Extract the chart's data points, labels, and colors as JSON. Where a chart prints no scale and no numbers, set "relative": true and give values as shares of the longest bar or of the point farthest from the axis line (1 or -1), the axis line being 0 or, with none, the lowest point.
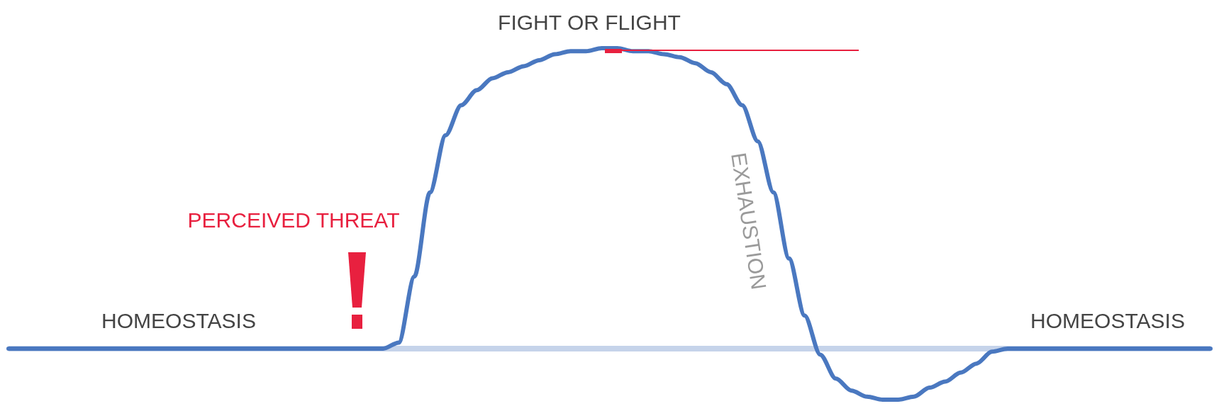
{
  "chart_data": {
    "type": "line",
    "relative": true,
    "categories": [
      null,
      null,
      null,
      null,
      null,
      null,
      null,
      null,
      null,
      null,
      null,
      null,
      null,
      null,
      null,
      null,
      null,
      null,
      null,
      null,
      null,
      null,
      null,
      null,
      null,
      null,
      null,
      null,
      null,
      null,
      null,
      null,
      null,
      null,
      null,
      null,
      null,
      null,
      null,
      null,
      null,
      null,
      null,
      null,
      null,
      null,
      null,
      null,
      null,
      null,
      null,
      null,
      null,
      null,
      null,
      null,
      null,
      null,
      null,
      null,
      null,
      null,
      null,
      null,
      null,
      null,
      null,
      null,
      null,
      null,
      null,
      null,
      null,
      null,
      null,
      null,
      null,
      null
    ],
    "series": [
      {
        "color": "#4a78c0",
        "values": [
          0,
          0,
          0,
          0,
          0,
          0,
          0,
          0,
          0,
          0,
          0,
          0,
          0,
          0,
          0,
          0,
          0,
          0,
          0,
          0,
          0,
          0,
          0,
          0,
          0,
          0.02,
          0.24,
          0.52,
          0.71,
          0.81,
          0.86,
          0.9,
          0.92,
          0.94,
          0.96,
          0.98,
          0.99,
          0.99,
          1,
          1,
          0.99,
          0.99,
          0.98,
          0.97,
          0.95,
          0.92,
          0.88,
          0.81,
          0.69,
          0.52,
          0.3,
          0.11,
          -0.02,
          -0.1,
          -0.14,
          -0.16,
          -0.17,
          -0.17,
          -0.16,
          -0.13,
          -0.11,
          -0.08,
          -0.05,
          -0.01,
          0,
          0,
          0,
          0,
          0,
          0,
          0,
          0,
          0,
          0,
          0,
          0,
          0,
          0
        ]
      }
    ],
    "annotations": [
      "FIGHT OR FLIGHT",
      "PERCEIVED THREAT",
      "EXHAUSTION",
      "HOMEOSTASIS",
      "HOMEOSTASIS"
    ],
    "ref_lines": [
      {
        "axis": "y",
        "value": 0,
        "color": "#c5d3ea"
      }
    ],
    "marker": "none",
    "line_style": "solid"
  }
}
